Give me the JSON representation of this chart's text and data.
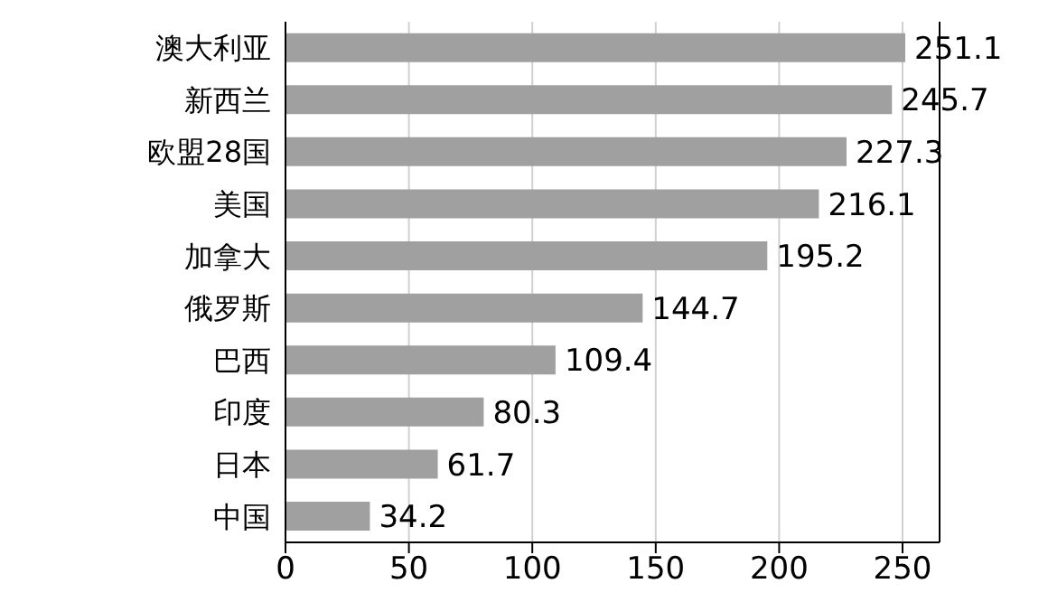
{
  "chart_data": {
    "type": "bar",
    "orientation": "horizontal",
    "categories": [
      "澳大利亚",
      "新西兰",
      "欧盟28国",
      "美国",
      "加拿大",
      "俄罗斯",
      "巴西",
      "印度",
      "日本",
      "中国"
    ],
    "values": [
      251.1,
      245.7,
      227.3,
      216.1,
      195.2,
      144.7,
      109.4,
      80.3,
      61.7,
      34.2
    ],
    "color": "#a0a0a0",
    "xlim": [
      0,
      265
    ],
    "xticks": [
      0,
      50,
      100,
      150,
      200,
      250
    ],
    "grid": "x",
    "data_labels": true
  }
}
